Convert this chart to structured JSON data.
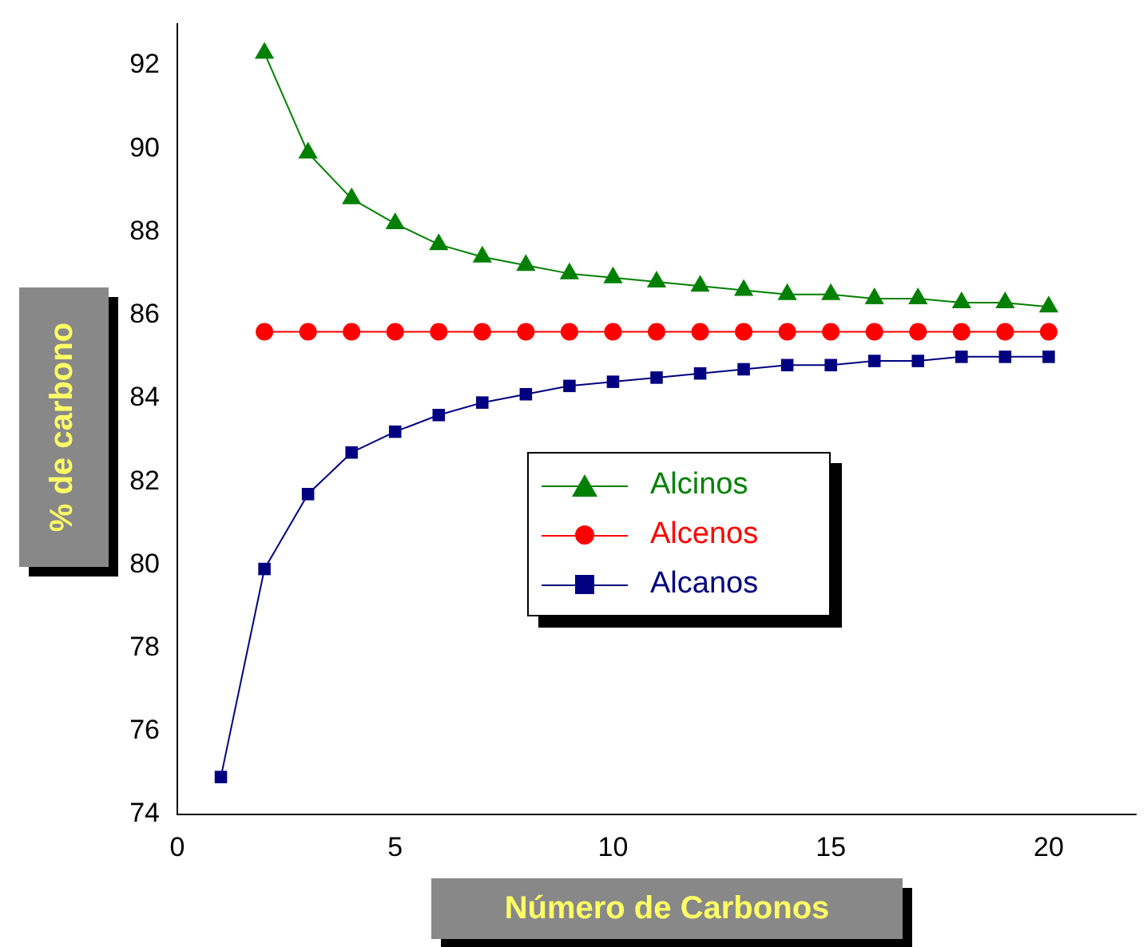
{
  "chart_data": {
    "type": "line",
    "xlabel": "Número de Carbonos",
    "ylabel": "% de carbono",
    "xlim": [
      0,
      22
    ],
    "xticks": [
      0,
      5,
      10,
      15,
      20
    ],
    "ylim": [
      74,
      93
    ],
    "yticks": [
      74,
      76,
      78,
      80,
      82,
      84,
      86,
      88,
      90,
      92
    ],
    "grid": false,
    "legend": "center",
    "line_style": "solid",
    "series": [
      {
        "name": "Alcinos",
        "color": "#008000",
        "marker": "triangle",
        "x": [
          2,
          3,
          4,
          5,
          6,
          7,
          8,
          9,
          10,
          11,
          12,
          13,
          14,
          15,
          16,
          17,
          18,
          19,
          20
        ],
        "values": [
          92.3,
          89.9,
          88.8,
          88.2,
          87.7,
          87.4,
          87.2,
          87.0,
          86.9,
          86.8,
          86.7,
          86.6,
          86.5,
          86.5,
          86.4,
          86.4,
          86.3,
          86.3,
          86.2
        ]
      },
      {
        "name": "Alcenos",
        "color": "#ff0000",
        "marker": "circle",
        "x": [
          2,
          3,
          4,
          5,
          6,
          7,
          8,
          9,
          10,
          11,
          12,
          13,
          14,
          15,
          16,
          17,
          18,
          19,
          20
        ],
        "values": [
          85.6,
          85.6,
          85.6,
          85.6,
          85.6,
          85.6,
          85.6,
          85.6,
          85.6,
          85.6,
          85.6,
          85.6,
          85.6,
          85.6,
          85.6,
          85.6,
          85.6,
          85.6,
          85.6
        ]
      },
      {
        "name": "Alcanos",
        "color": "#000080",
        "marker": "square",
        "x": [
          1,
          2,
          3,
          4,
          5,
          6,
          7,
          8,
          9,
          10,
          11,
          12,
          13,
          14,
          15,
          16,
          17,
          18,
          19,
          20
        ],
        "values": [
          74.9,
          79.9,
          81.7,
          82.7,
          83.2,
          83.6,
          83.9,
          84.1,
          84.3,
          84.4,
          84.5,
          84.6,
          84.7,
          84.8,
          84.8,
          84.9,
          84.9,
          85.0,
          85.0,
          85.0
        ]
      }
    ]
  }
}
